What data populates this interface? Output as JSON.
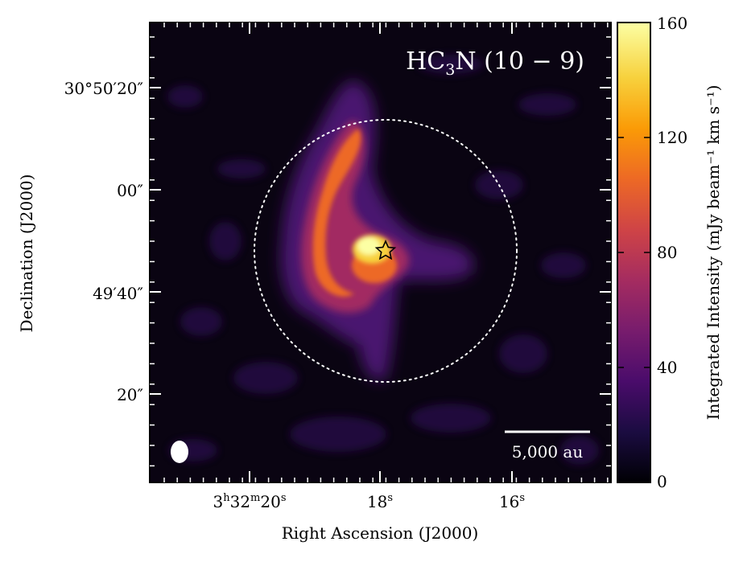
{
  "figure": {
    "map_label_parts": [
      "HC",
      "3",
      "N (10 − 9)"
    ],
    "scalebar_label": "5,000 au",
    "x_axis_label": "Right Ascension (J2000)",
    "y_axis_label": "Declination (J2000)",
    "x_ticks": [
      {
        "parts": [
          "3",
          "h",
          "32",
          "m",
          "20",
          "s"
        ]
      },
      {
        "parts": [
          "18",
          "s"
        ]
      },
      {
        "parts": [
          "16",
          "s"
        ]
      }
    ],
    "y_ticks": [
      {
        "label": "30°50′20″"
      },
      {
        "label": "00″"
      },
      {
        "label": "49′40″"
      },
      {
        "label": "20″"
      }
    ],
    "colorbar": {
      "label": "Integrated Intensity (mJy beam⁻¹ km s⁻¹)",
      "min": 0,
      "max": 160,
      "ticks": [
        "0",
        "40",
        "80",
        "120",
        "160"
      ],
      "colormap": [
        "#000004",
        "#1b0c41",
        "#4a0c6b",
        "#781c6d",
        "#a52c60",
        "#cf4446",
        "#ed6925",
        "#fb9b06",
        "#f7d13d",
        "#fcffa4"
      ]
    },
    "colors": {
      "background_emission": "#0a0412",
      "contour": "#ffffff",
      "marker": "#ffffff"
    }
  }
}
